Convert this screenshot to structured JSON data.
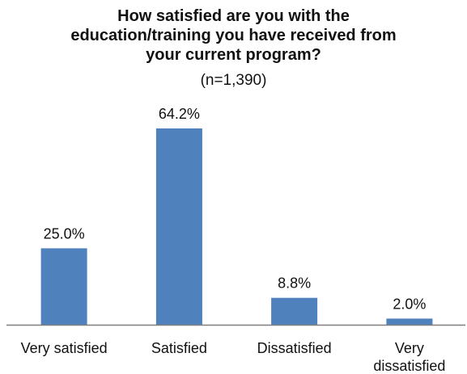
{
  "chart_data": {
    "type": "bar",
    "title_lines": [
      "How satisfied are you with the",
      "education/training you have received from",
      "your current program?"
    ],
    "subtitle": "(n=1,390)",
    "categories": [
      "Very satisfied",
      "Satisfied",
      "Dissatisfied",
      "Very dissatisfied"
    ],
    "category_label_lines": [
      [
        "Very satisfied"
      ],
      [
        "Satisfied"
      ],
      [
        "Dissatisfied"
      ],
      [
        "Very",
        "dissatisfied"
      ]
    ],
    "values": [
      25.0,
      64.2,
      8.8,
      2.0
    ],
    "data_labels": [
      "25.0%",
      "64.2%",
      "8.8%",
      "2.0%"
    ],
    "ylim": [
      0,
      70
    ],
    "grid": false,
    "legend": "none",
    "xlabel": "",
    "ylabel": "",
    "colors": {
      "bar": "#4f81bd",
      "axis": "#7f7f7f",
      "text": "#111111"
    }
  }
}
